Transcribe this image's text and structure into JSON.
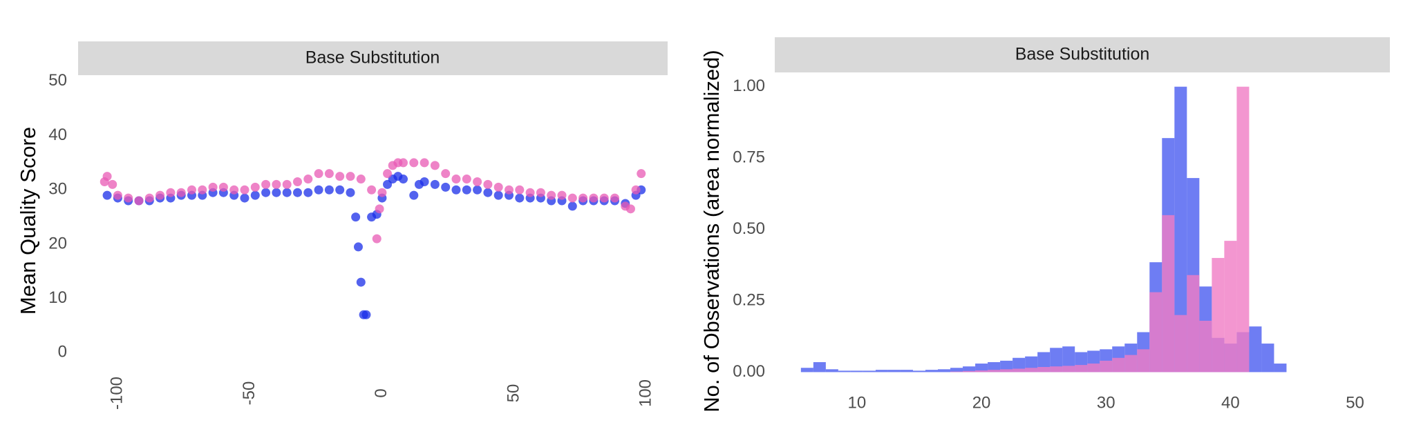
{
  "chart_data": [
    {
      "type": "scatter",
      "title": "Base Substitution",
      "y_label": "Mean Quality Score",
      "xlim": [
        -115,
        108
      ],
      "ylim": [
        -3,
        51
      ],
      "xticks": [
        -100,
        -50,
        0,
        50,
        100
      ],
      "yticks": [
        0,
        10,
        20,
        30,
        40,
        50
      ],
      "series": [
        {
          "color": "#1a2ee8",
          "x": [
            -104,
            -100,
            -96,
            -92,
            -88,
            -84,
            -80,
            -76,
            -72,
            -68,
            -64,
            -60,
            -56,
            -52,
            -48,
            -44,
            -40,
            -36,
            -32,
            -28,
            -24,
            -20,
            -16,
            -12,
            -10,
            -9,
            -8,
            -7,
            -6,
            -4,
            -2,
            0,
            2,
            4,
            6,
            8,
            12,
            14,
            16,
            20,
            24,
            28,
            32,
            36,
            40,
            44,
            48,
            52,
            56,
            60,
            64,
            68,
            72,
            76,
            80,
            84,
            88,
            92,
            96,
            98
          ],
          "values": [
            29,
            28.5,
            28,
            28,
            28,
            28.5,
            28.5,
            29,
            29,
            29,
            29.5,
            29.5,
            29,
            28.5,
            29,
            29.5,
            29.5,
            29.5,
            29.5,
            29.5,
            30,
            30,
            30,
            29.5,
            25,
            19.5,
            13,
            7,
            7,
            25,
            25.5,
            28.5,
            31,
            32,
            32.5,
            32,
            29,
            31,
            31.5,
            31,
            30.5,
            30,
            30,
            30,
            29.5,
            29,
            29,
            28.5,
            28.5,
            28.5,
            28,
            28,
            27,
            28,
            28,
            28,
            28,
            27.5,
            29,
            30
          ]
        },
        {
          "color": "#e85ab4",
          "x": [
            -105,
            -104,
            -102,
            -100,
            -96,
            -92,
            -88,
            -84,
            -80,
            -76,
            -72,
            -68,
            -64,
            -60,
            -56,
            -52,
            -48,
            -44,
            -40,
            -36,
            -32,
            -28,
            -24,
            -20,
            -16,
            -12,
            -8,
            -4,
            -2,
            -1,
            0,
            2,
            4,
            6,
            8,
            12,
            16,
            20,
            24,
            28,
            32,
            36,
            40,
            44,
            48,
            52,
            56,
            60,
            64,
            68,
            72,
            76,
            80,
            84,
            88,
            92,
            94,
            96,
            98
          ],
          "values": [
            31.5,
            32.5,
            31,
            29,
            28.5,
            28,
            28.5,
            29,
            29.5,
            29.5,
            30,
            30,
            30.5,
            30.5,
            30,
            30,
            30.5,
            31,
            31,
            31,
            31.5,
            32,
            33,
            33,
            32.5,
            32.5,
            32,
            30,
            21,
            26.5,
            29.5,
            33,
            34.5,
            35,
            35,
            35,
            35,
            34.5,
            33,
            32,
            32,
            31.5,
            31,
            30.5,
            30,
            30,
            29.5,
            29.5,
            29,
            29,
            28.5,
            28.5,
            28.5,
            28.5,
            28.5,
            27,
            26.5,
            30,
            33
          ]
        }
      ]
    },
    {
      "type": "histogram",
      "title": "Base Substitution",
      "y_label": "No. of Observations (area normalized)",
      "xlim": [
        3.4,
        52.8
      ],
      "ylim": [
        -0.04,
        1.05
      ],
      "xticks": [
        10,
        20,
        30,
        40,
        50
      ],
      "yticks": [
        {
          "value": 0,
          "label": "0.00"
        },
        {
          "value": 0.25,
          "label": "0.25"
        },
        {
          "value": 0.5,
          "label": "0.50"
        },
        {
          "value": 0.75,
          "label": "0.75"
        },
        {
          "value": 1,
          "label": "1.00"
        }
      ],
      "bins": [
        5.5,
        6.5,
        7.5,
        8.5,
        9.5,
        10.5,
        11.5,
        12.5,
        13.5,
        14.5,
        15.5,
        16.5,
        17.5,
        18.5,
        19.5,
        20.5,
        21.5,
        22.5,
        23.5,
        24.5,
        25.5,
        26.5,
        27.5,
        28.5,
        29.5,
        30.5,
        31.5,
        32.5,
        33.5,
        34.5,
        35.5,
        36.5,
        37.5,
        38.5,
        39.5,
        40.5,
        41.5,
        42.5,
        43.5,
        44.5
      ],
      "series": [
        {
          "color": "#4a5cf0",
          "values": [
            0.015,
            0.035,
            0.01,
            0.005,
            0.005,
            0.005,
            0.008,
            0.008,
            0.008,
            0.005,
            0.008,
            0.01,
            0.015,
            0.02,
            0.03,
            0.035,
            0.04,
            0.05,
            0.055,
            0.07,
            0.085,
            0.09,
            0.07,
            0.075,
            0.08,
            0.09,
            0.1,
            0.14,
            0.385,
            0.82,
            1.0,
            0.68,
            0.3,
            0.12,
            0.1,
            0.14,
            0.16,
            0.1,
            0.03
          ]
        },
        {
          "color": "#f07cc4",
          "values": [
            0,
            0,
            0,
            0,
            0,
            0,
            0,
            0,
            0,
            0,
            0,
            0,
            0.002,
            0.004,
            0.006,
            0.008,
            0.01,
            0.012,
            0.015,
            0.018,
            0.02,
            0.022,
            0.025,
            0.03,
            0.04,
            0.05,
            0.06,
            0.08,
            0.28,
            0.55,
            0.2,
            0.34,
            0.18,
            0.4,
            0.46,
            1.0,
            0,
            0,
            0
          ]
        }
      ]
    }
  ]
}
